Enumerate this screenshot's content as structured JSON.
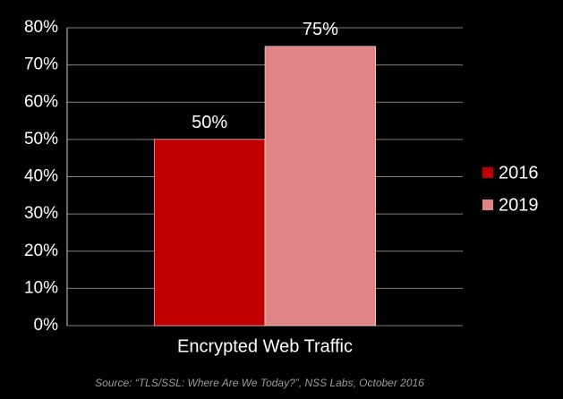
{
  "chart_data": {
    "type": "bar",
    "categories": [
      "Encrypted Web Traffic"
    ],
    "series": [
      {
        "name": "2016",
        "color": "#c00000",
        "values": [
          50
        ],
        "value_labels": [
          "50%"
        ]
      },
      {
        "name": "2019",
        "color": "#e08585",
        "values": [
          75
        ],
        "value_labels": [
          "75%"
        ]
      }
    ],
    "ylim": [
      0,
      80
    ],
    "yticks": [
      {
        "value": 0,
        "label": "0%"
      },
      {
        "value": 10,
        "label": "10%"
      },
      {
        "value": 20,
        "label": "20%"
      },
      {
        "value": 30,
        "label": "30%"
      },
      {
        "value": 40,
        "label": "40%"
      },
      {
        "value": 50,
        "label": "50%"
      },
      {
        "value": 60,
        "label": "60%"
      },
      {
        "value": 70,
        "label": "70%"
      },
      {
        "value": 80,
        "label": "80%"
      }
    ],
    "grid": true,
    "legend": "right",
    "source": "Source: “TLS/SSL: Where Are We Today?”, NSS Labs, October 2016"
  }
}
